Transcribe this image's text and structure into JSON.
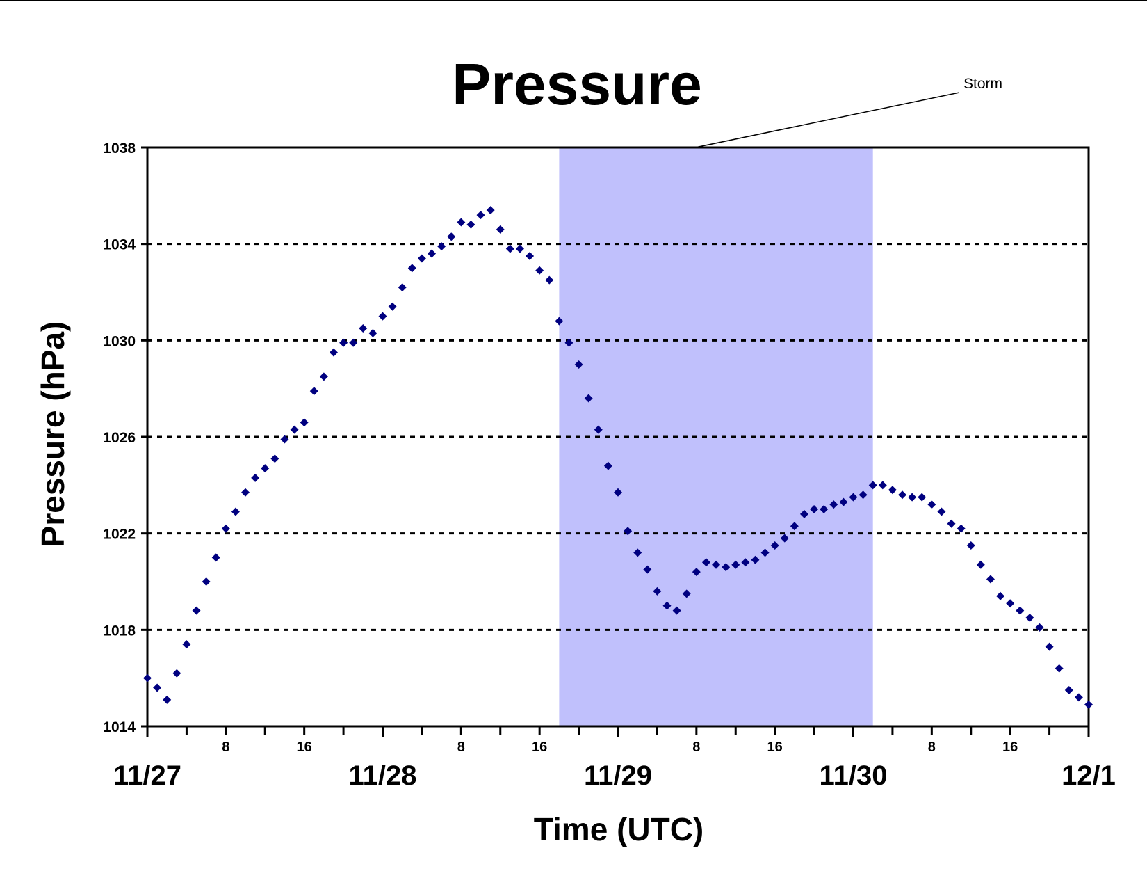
{
  "colors": {
    "marker": "#000080",
    "storm_band": "#c0c0fc",
    "axis": "#000000",
    "grid": "#000000"
  },
  "chart_data": {
    "type": "scatter",
    "title": "Pressure",
    "xlabel": "Time (UTC)",
    "ylabel": "Pressure (hPa)",
    "marker": "diamond",
    "xlim": [
      "11/27 00:00",
      "12/1 00:00"
    ],
    "ylim": [
      1014,
      1038
    ],
    "yticks": [
      1014,
      1018,
      1022,
      1026,
      1030,
      1034,
      1038
    ],
    "grid": "horizontal dotted at 1018, 1022, 1026, 1030, 1034",
    "x_date_labels": [
      "11/27",
      "11/28",
      "11/29",
      "11/30",
      "12/1"
    ],
    "x_hour_labels": [
      "8",
      "16"
    ],
    "annotation": {
      "text": "Storm",
      "shaded_from": "11/28 18:00",
      "shaded_to": "11/30 02:00"
    },
    "series": [
      {
        "name": "",
        "x": [
          "11/27 00:00",
          "11/27 01:00",
          "11/27 02:00",
          "11/27 03:00",
          "11/27 04:00",
          "11/27 05:00",
          "11/27 06:00",
          "11/27 07:00",
          "11/27 08:00",
          "11/27 09:00",
          "11/27 10:00",
          "11/27 11:00",
          "11/27 12:00",
          "11/27 13:00",
          "11/27 14:00",
          "11/27 15:00",
          "11/27 16:00",
          "11/27 17:00",
          "11/27 18:00",
          "11/27 19:00",
          "11/27 20:00",
          "11/27 21:00",
          "11/27 22:00",
          "11/27 23:00",
          "11/28 00:00",
          "11/28 01:00",
          "11/28 02:00",
          "11/28 03:00",
          "11/28 04:00",
          "11/28 05:00",
          "11/28 06:00",
          "11/28 07:00",
          "11/28 08:00",
          "11/28 09:00",
          "11/28 10:00",
          "11/28 11:00",
          "11/28 12:00",
          "11/28 13:00",
          "11/28 14:00",
          "11/28 15:00",
          "11/28 16:00",
          "11/28 17:00",
          "11/28 18:00",
          "11/28 19:00",
          "11/28 20:00",
          "11/28 21:00",
          "11/28 22:00",
          "11/28 23:00",
          "11/29 00:00",
          "11/29 01:00",
          "11/29 02:00",
          "11/29 03:00",
          "11/29 04:00",
          "11/29 05:00",
          "11/29 06:00",
          "11/29 07:00",
          "11/29 08:00",
          "11/29 09:00",
          "11/29 10:00",
          "11/29 11:00",
          "11/29 12:00",
          "11/29 13:00",
          "11/29 14:00",
          "11/29 15:00",
          "11/29 16:00",
          "11/29 17:00",
          "11/29 18:00",
          "11/29 19:00",
          "11/29 20:00",
          "11/29 21:00",
          "11/29 22:00",
          "11/29 23:00",
          "11/30 00:00",
          "11/30 01:00",
          "11/30 02:00",
          "11/30 03:00",
          "11/30 04:00",
          "11/30 05:00",
          "11/30 06:00",
          "11/30 07:00",
          "11/30 08:00",
          "11/30 09:00",
          "11/30 10:00",
          "11/30 11:00",
          "11/30 12:00",
          "11/30 13:00",
          "11/30 14:00",
          "11/30 15:00",
          "11/30 16:00",
          "11/30 17:00",
          "11/30 18:00",
          "11/30 19:00",
          "11/30 20:00",
          "11/30 21:00",
          "11/30 22:00",
          "11/30 23:00",
          "12/1 00:00"
        ],
        "values": [
          1016.0,
          1015.6,
          1015.1,
          1016.2,
          1017.4,
          1018.8,
          1020.0,
          1021.0,
          1022.2,
          1022.9,
          1023.7,
          1024.3,
          1024.7,
          1025.1,
          1025.9,
          1026.3,
          1026.6,
          1027.9,
          1028.5,
          1029.5,
          1029.9,
          1029.9,
          1030.5,
          1030.3,
          1031.0,
          1031.4,
          1032.2,
          1033.0,
          1033.4,
          1033.6,
          1033.9,
          1034.3,
          1034.9,
          1034.8,
          1035.2,
          1035.4,
          1034.6,
          1033.8,
          1033.8,
          1033.5,
          1032.9,
          1032.5,
          1030.8,
          1029.9,
          1029.0,
          1027.6,
          1026.3,
          1024.8,
          1023.7,
          1022.1,
          1021.2,
          1020.5,
          1019.6,
          1019.0,
          1018.8,
          1019.5,
          1020.4,
          1020.8,
          1020.7,
          1020.6,
          1020.7,
          1020.8,
          1020.9,
          1021.2,
          1021.5,
          1021.8,
          1022.3,
          1022.8,
          1023.0,
          1023.0,
          1023.2,
          1023.3,
          1023.5,
          1023.6,
          1024.0,
          1024.0,
          1023.8,
          1023.6,
          1023.5,
          1023.5,
          1023.2,
          1022.9,
          1022.4,
          1022.2,
          1021.5,
          1020.7,
          1020.1,
          1019.4,
          1019.1,
          1018.8,
          1018.5,
          1018.1,
          1017.3,
          1016.4,
          1015.5,
          1015.2,
          1014.9
        ]
      }
    ]
  }
}
